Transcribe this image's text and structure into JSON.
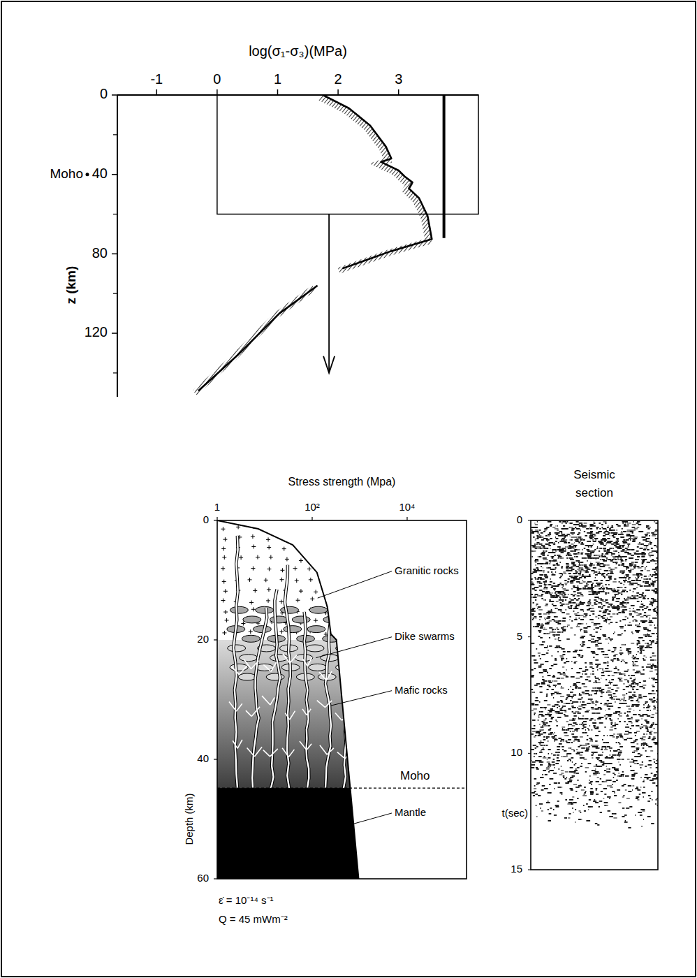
{
  "chart_data": [
    {
      "type": "line",
      "x_label": "log(σ₁-σ₃)(MPa)",
      "y_label": "z (km)",
      "xlim": [
        -1.65,
        4.32
      ],
      "xticks": [
        -1,
        0,
        1,
        2,
        3
      ],
      "ylim": [
        0,
        152
      ],
      "yticks": [
        0,
        40,
        80,
        120
      ],
      "minor_yticks": [
        20,
        60,
        100,
        140
      ],
      "annotations": [
        {
          "text": "Moho",
          "y": 40
        }
      ],
      "series": [
        {
          "color": "#000000",
          "x": [
            1.75,
            2.18,
            2.53,
            2.79,
            2.88,
            2.71,
            3.0,
            3.1,
            3.23,
            3.17,
            3.34,
            3.48,
            3.55,
            2.88,
            2.07,
            null,
            1.66,
            1.03,
            0.34,
            -0.31
          ],
          "values": [
            0,
            6.7,
            15.4,
            26,
            32,
            33.7,
            38,
            41,
            44,
            47,
            52,
            61,
            72.6,
            78.6,
            87.4,
            null,
            96,
            110,
            131,
            149
          ]
        }
      ],
      "inset_box": {
        "xlim": [
          0,
          4.32
        ],
        "ylim": [
          0,
          60
        ]
      },
      "reference_line": {
        "x": 3.75,
        "ylim": [
          0,
          72
        ]
      },
      "arrow": {
        "x": 1.85,
        "ylim": [
          60,
          140
        ]
      }
    },
    {
      "type": "area",
      "title": "Stress strength (Mpa)",
      "y_label": "Depth (km)",
      "log": "x",
      "xlim": [
        1,
        178000
      ],
      "xticks": [
        1,
        {
          "value": 100,
          "label": "10²"
        },
        {
          "value": 10000,
          "label": "10⁴"
        }
      ],
      "ylim": [
        0,
        60
      ],
      "yticks": [
        0,
        20,
        40,
        60
      ],
      "envelope": {
        "x": [
          1,
          7.3,
          39,
          126,
          209,
          247,
          324,
          950
        ],
        "values": [
          0,
          1.4,
          4.1,
          8.7,
          14.5,
          19,
          20,
          60
        ]
      },
      "layers": [
        {
          "label": "Granitic rocks",
          "top": 0,
          "bottom": 20
        },
        {
          "label": "Mafic rocks",
          "top": 20,
          "bottom": 44.8
        },
        {
          "label": "Mantle",
          "top": 44.8,
          "bottom": 60
        }
      ],
      "features": [
        {
          "label": "Dike swarms",
          "top": 0,
          "bottom": 44.8
        }
      ],
      "moho": {
        "text": "Moho",
        "depth": 44.8
      },
      "annotations": [
        "ε̇ = 10⁻¹⁴ s⁻¹",
        "Q = 45 mWm⁻²"
      ]
    },
    {
      "type": "image",
      "title": "Seismic section",
      "y_label": "t(sec)",
      "ylim": [
        0,
        15
      ],
      "yticks": [
        0,
        5,
        10,
        15
      ],
      "reflectivity": {
        "t": [
          0,
          0.5,
          3,
          4,
          5,
          6.5,
          8,
          10,
          11.5,
          12.5,
          13.3
        ],
        "values": [
          0.7,
          1,
          0.95,
          0.7,
          0.4,
          0.45,
          0.65,
          0.55,
          0.35,
          0.2,
          0
        ]
      }
    }
  ]
}
